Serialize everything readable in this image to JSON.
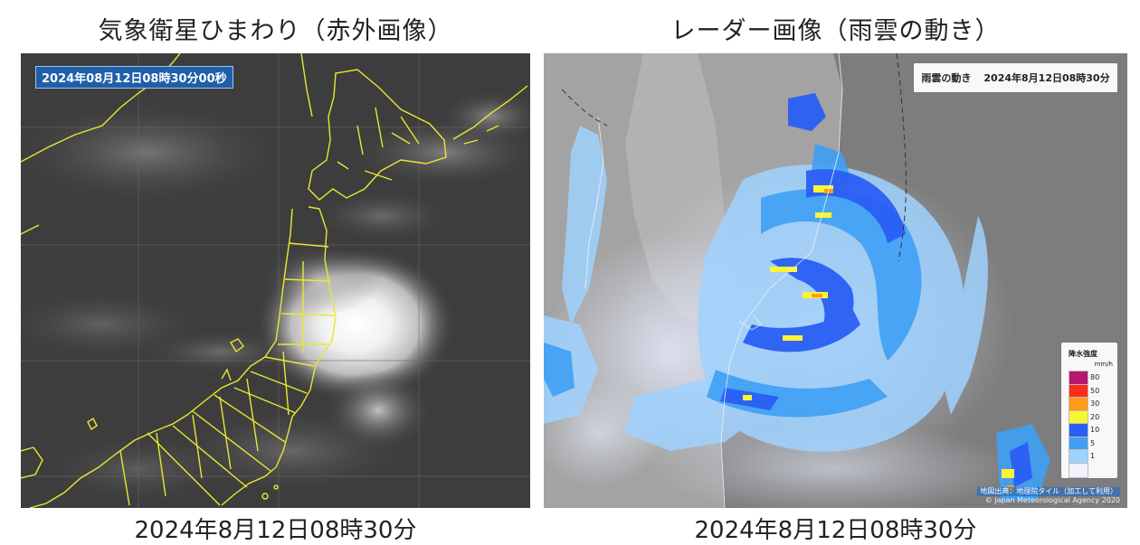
{
  "left_panel": {
    "title": "気象衛星ひまわり（赤外画像）",
    "timestamp_overlay": "2024年08月12日08時30分00秒",
    "caption": "2024年8月12日08時30分"
  },
  "right_panel": {
    "title": "レーダー画像（雨雲の動き）",
    "header_label": "雨雲の動き",
    "header_time": "2024年8月12日08時30分",
    "caption": "2024年8月12日08時30分",
    "legend": {
      "title": "降水強度",
      "unit": "mm/h",
      "levels": [
        {
          "label": "80",
          "color": "#b4186e"
        },
        {
          "label": "50",
          "color": "#ff2a1a"
        },
        {
          "label": "30",
          "color": "#ff9a1a"
        },
        {
          "label": "20",
          "color": "#faf532"
        },
        {
          "label": "10",
          "color": "#2a5ff5"
        },
        {
          "label": "5",
          "color": "#3fa0f5"
        },
        {
          "label": "1",
          "color": "#a0d2ff"
        },
        {
          "label": "",
          "color": "#f2f2ff"
        }
      ]
    },
    "credit_source": "地図出典：地理院タイル（加工して利用）",
    "credit_copyright": "© Japan Meteorological Agency 2020"
  }
}
